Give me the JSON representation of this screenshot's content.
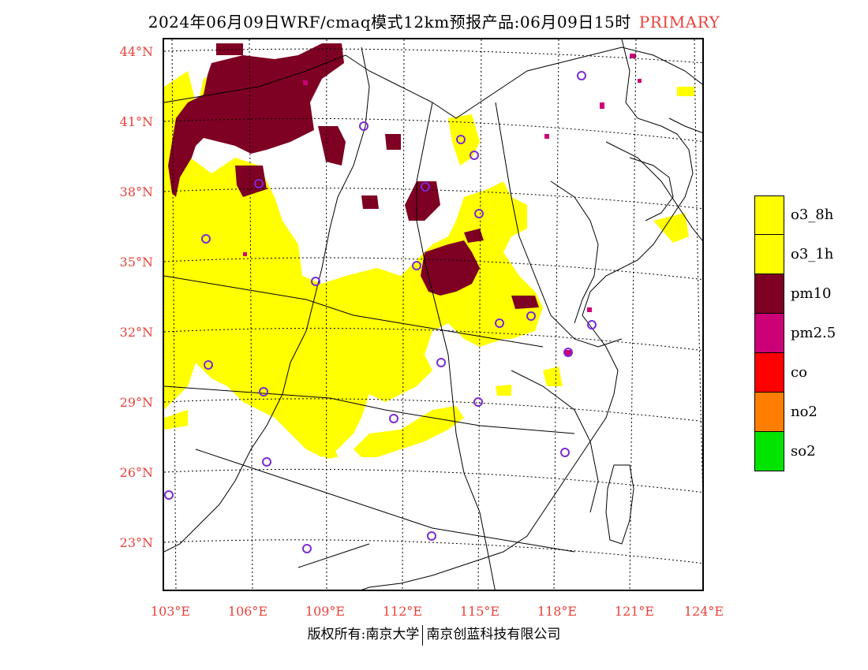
{
  "title": {
    "text": "2024年06月09日WRF/cmaq模式12km预报产品:06月09日15时",
    "tag": "PRIMARY"
  },
  "latitude_labels": [
    "44°N",
    "41°N",
    "38°N",
    "35°N",
    "32°N",
    "29°N",
    "26°N",
    "23°N"
  ],
  "longitude_labels": [
    "103°E",
    "106°E",
    "109°E",
    "112°E",
    "115°E",
    "118°E",
    "121°E",
    "124°E"
  ],
  "legend": [
    {
      "label": "o3_8h",
      "color": "#ffff00"
    },
    {
      "label": "o3_1h",
      "color": "#ffff00"
    },
    {
      "label": "pm10",
      "color": "#7e0023"
    },
    {
      "label": "pm2.5",
      "color": "#cc0077"
    },
    {
      "label": "co",
      "color": "#ff0000"
    },
    {
      "label": "no2",
      "color": "#ff7e00"
    },
    {
      "label": "so2",
      "color": "#00e400"
    }
  ],
  "copyright": {
    "left": "版权所有:南京大学",
    "right": "南京创蓝科技有限公司"
  },
  "colors": {
    "o3": "#ffff00",
    "pm10": "#7e0023",
    "pm25": "#cc0077",
    "station_marker": "#7b2bd6",
    "axis_label": "#e8423a"
  }
}
